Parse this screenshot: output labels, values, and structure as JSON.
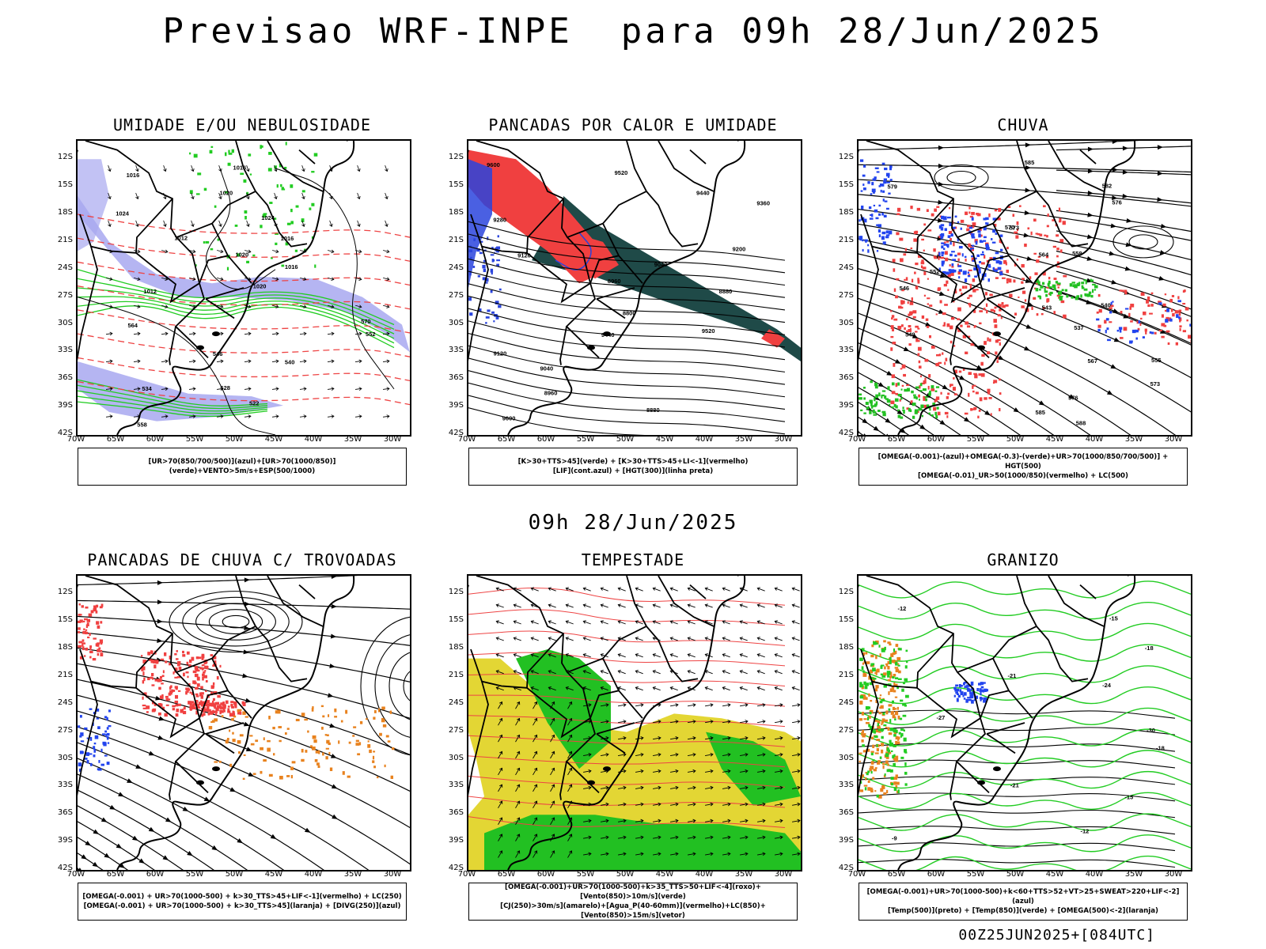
{
  "main_title": "Previsao WRF-INPE  para 09h 28/Jun/2025",
  "mid_date": "09h 28/Jun/2025",
  "run_info": "00Z25JUN2025+[084UTC]",
  "lat_labels": [
    "12S",
    "15S",
    "18S",
    "21S",
    "24S",
    "27S",
    "30S",
    "33S",
    "36S",
    "39S",
    "42S"
  ],
  "lon_labels": [
    "70W",
    "65W",
    "60W",
    "55W",
    "50W",
    "45W",
    "40W",
    "35W",
    "30W"
  ],
  "colors": {
    "blue_shade": "#a8a8f0",
    "green_contour": "#22cc22",
    "red_contour": "#ee4444",
    "red_fill": "#f04040",
    "dark_teal": "#1f4a48",
    "blue": "#2244ee",
    "orange": "#e8821e",
    "yellow": "#e3d634",
    "green_fill": "#22c022"
  },
  "panels": [
    {
      "title": "UMIDADE E/OU NEBULOSIDADE",
      "legend": [
        "[UR>70(850/700/500)](azul)+[UR>70(1000/850)](verde)+VENTO>5m/s+ESP(500/1000)"
      ],
      "contour_labels": [
        "1016",
        "1016",
        "1020",
        "1024",
        "1024",
        "1012",
        "1016",
        "1020",
        "1016",
        "1020",
        "1012",
        "570",
        "564",
        "552",
        "546",
        "540",
        "534",
        "528",
        "522",
        "558"
      ]
    },
    {
      "title": "PANCADAS POR CALOR E UMIDADE",
      "legend": [
        "[K>30+TTS>45](verde) + [K>30+TTS>45+LI<-1](vermelho)",
        "[LIF](cont.azul) + [HGT(300)](linha preta)"
      ],
      "contour_labels": [
        "9600",
        "9520",
        "9440",
        "9360",
        "9280",
        "9200",
        "9120",
        "9040",
        "8960",
        "8880",
        "8800",
        "9520",
        "9440",
        "9120",
        "9040",
        "8960",
        "8880",
        "9600"
      ]
    },
    {
      "title": "CHUVA",
      "legend": [
        "[OMEGA(-0.001)-(azul)+OMEGA(-0.3)-(verde)+UR>70(1000/850/700/500)] + HGT(500)",
        "[OMEGA(-0.01)_UR>50(1000/850)(vermelho) + LC(500)"
      ],
      "contour_labels": [
        "585",
        "582",
        "579",
        "576",
        "573",
        "570",
        "564",
        "558",
        "552",
        "546",
        "540",
        "543",
        "537",
        "549",
        "555",
        "567",
        "573",
        "576",
        "585",
        "588"
      ]
    },
    {
      "title": "PANCADAS DE CHUVA C/ TROVOADAS",
      "legend": [
        "[OMEGA(-0.001) + UR>70(1000-500) + k>30_TTS>45+LIF<-1](vermelho) + LC(250)",
        "[OMEGA(-0.001) + UR>70(1000-500) + k>30_TTS>45](laranja) + [DIVG(250)](azul)"
      ]
    },
    {
      "title": "TEMPESTADE",
      "legend": [
        "[OMEGA(-0.001)+UR>70(1000-500)+k>35_TTS>50+LIF<-4](roxo)+[Vento(850)>10m/s](verde)",
        "[CJ(250)>30m/s](amarelo)+[Agua_P(40-60mm)](vermelho)+LC(850)+[Vento(850)>15m/s](vetor)"
      ]
    },
    {
      "title": "GRANIZO",
      "legend": [
        "[OMEGA(-0.001)+UR>70(1000-500)+k<60+TTS>52+VT>25+SWEAT>220+LIF<-2](azul)",
        "[Temp(500)](preto) + [Temp(850)](verde) + [OMEGA(500)<-2](laranja)"
      ],
      "contour_labels": [
        "-12",
        "-15",
        "-18",
        "-21",
        "-24",
        "-27",
        "-30",
        "-18",
        "-21",
        "-15",
        "-12",
        "-9"
      ]
    }
  ]
}
